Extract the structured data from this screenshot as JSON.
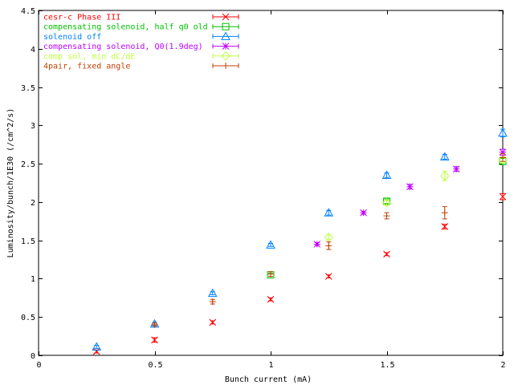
{
  "chart_data": {
    "type": "scatter",
    "title": "",
    "xlabel": "Bunch current (mA)",
    "ylabel": "Luminosity/bunch/1E30 (/cm^2/s)",
    "xlim": [
      0,
      2
    ],
    "ylim": [
      0,
      4.5
    ],
    "xticks": [
      0,
      0.5,
      1,
      1.5,
      2
    ],
    "xtick_labels": [
      "0",
      "0.5",
      "1",
      "1.5",
      "2"
    ],
    "yticks": [
      0,
      0.5,
      1,
      1.5,
      2,
      2.5,
      3,
      3.5,
      4,
      4.5
    ],
    "ytick_labels": [
      "0",
      "0.5",
      "1",
      "1.5",
      "2",
      "2.5",
      "3",
      "3.5",
      "4",
      "4.5"
    ],
    "grid": false,
    "legend_position": "top-left",
    "error_bars": true,
    "series": [
      {
        "name": "cesr-c Phase III",
        "color": "#ff0000",
        "marker": "x",
        "points": [
          {
            "x": 0.25,
            "y": 0.05,
            "err": 0.02
          },
          {
            "x": 0.5,
            "y": 0.2,
            "err": 0.03
          },
          {
            "x": 0.75,
            "y": 0.43,
            "err": 0.02
          },
          {
            "x": 1.0,
            "y": 0.73,
            "err": 0.02
          },
          {
            "x": 1.25,
            "y": 1.03,
            "err": 0.02
          },
          {
            "x": 1.5,
            "y": 1.32,
            "err": 0.02
          },
          {
            "x": 1.75,
            "y": 1.68,
            "err": 0.03
          },
          {
            "x": 2.0,
            "y": 2.07,
            "err": 0.04
          }
        ]
      },
      {
        "name": "compensating solenoid, half q0 old",
        "color": "#00c000",
        "marker": "square",
        "points": [
          {
            "x": 1.0,
            "y": 1.05,
            "err": 0.02
          },
          {
            "x": 1.5,
            "y": 2.01,
            "err": 0.03
          },
          {
            "x": 2.0,
            "y": 2.53,
            "err": 0.04
          }
        ]
      },
      {
        "name": "solenoid off",
        "color": "#0080ff",
        "marker": "triangle",
        "points": [
          {
            "x": 0.25,
            "y": 0.11,
            "err": 0.02
          },
          {
            "x": 0.5,
            "y": 0.41,
            "err": 0.02
          },
          {
            "x": 0.75,
            "y": 0.81,
            "err": 0.02
          },
          {
            "x": 1.0,
            "y": 1.44,
            "err": 0.02
          },
          {
            "x": 1.25,
            "y": 1.86,
            "err": 0.03
          },
          {
            "x": 1.5,
            "y": 2.35,
            "err": 0.03
          },
          {
            "x": 1.75,
            "y": 2.59,
            "err": 0.03
          },
          {
            "x": 2.0,
            "y": 2.9,
            "err": 0.05
          }
        ]
      },
      {
        "name": "compensating solenoid, Q0(1.9deg)",
        "color": "#c000ff",
        "marker": "star",
        "points": [
          {
            "x": 1.2,
            "y": 1.45,
            "err": 0.02
          },
          {
            "x": 1.4,
            "y": 1.86,
            "err": 0.02
          },
          {
            "x": 1.6,
            "y": 2.2,
            "err": 0.03
          },
          {
            "x": 1.8,
            "y": 2.43,
            "err": 0.03
          },
          {
            "x": 2.0,
            "y": 2.65,
            "err": 0.04
          }
        ]
      },
      {
        "name": "comp sol, min dC/dE",
        "color": "#c0ff40",
        "marker": "diamond",
        "points": [
          {
            "x": 1.25,
            "y": 1.54,
            "err": 0.03
          },
          {
            "x": 1.5,
            "y": 1.99,
            "err": 0.03
          },
          {
            "x": 1.75,
            "y": 2.34,
            "err": 0.06
          },
          {
            "x": 2.0,
            "y": 2.55,
            "err": 0.04
          }
        ]
      },
      {
        "name": "4pair, fixed angle",
        "color": "#c04000",
        "marker": "plus",
        "points": [
          {
            "x": 0.5,
            "y": 0.4,
            "err": 0.02
          },
          {
            "x": 0.75,
            "y": 0.7,
            "err": 0.03
          },
          {
            "x": 1.0,
            "y": 1.06,
            "err": 0.03
          },
          {
            "x": 1.25,
            "y": 1.43,
            "err": 0.05
          },
          {
            "x": 1.5,
            "y": 1.82,
            "err": 0.04
          },
          {
            "x": 1.75,
            "y": 1.86,
            "err": 0.08
          },
          {
            "x": 2.0,
            "y": 2.58,
            "err": 0.05
          }
        ]
      }
    ]
  }
}
